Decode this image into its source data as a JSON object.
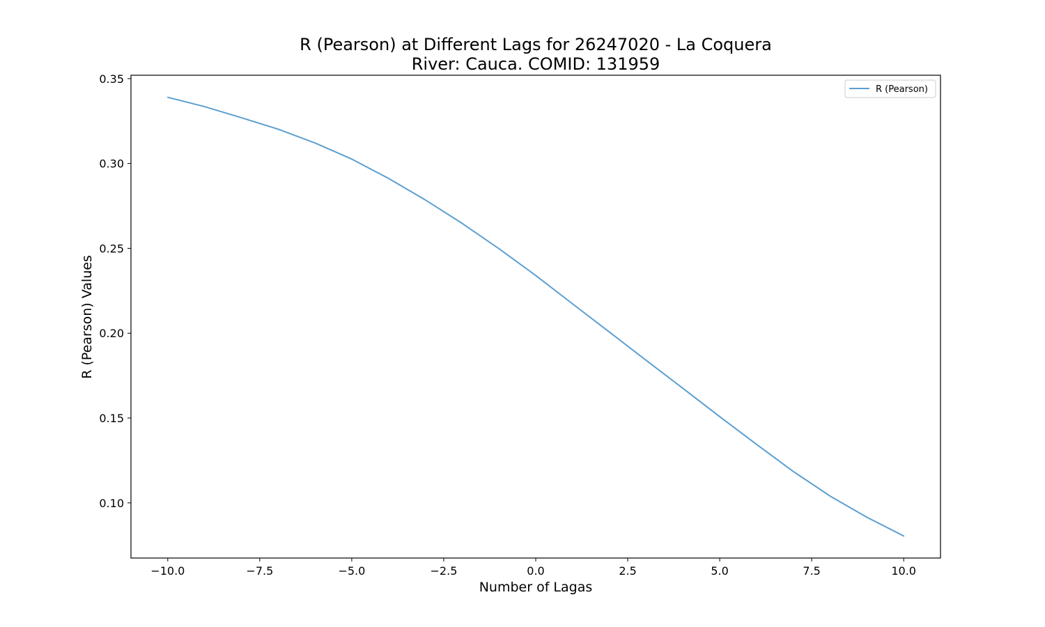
{
  "chart_data": {
    "type": "line",
    "title": "R (Pearson) at Different Lags for 26247020 - La Coquera",
    "subtitle": "River: Cauca. COMID: 131959",
    "xlabel": "Number of Lagas",
    "ylabel": "R (Pearson) Values",
    "xlim": [
      -11,
      11
    ],
    "ylim": [
      0.0675,
      0.352
    ],
    "x_ticks": [
      -10.0,
      -7.5,
      -5.0,
      -2.5,
      0.0,
      2.5,
      5.0,
      7.5,
      10.0
    ],
    "x_tick_labels": [
      "−10.0",
      "−7.5",
      "−5.0",
      "−2.5",
      "0.0",
      "2.5",
      "5.0",
      "7.5",
      "10.0"
    ],
    "y_ticks": [
      0.1,
      0.15,
      0.2,
      0.25,
      0.3,
      0.35
    ],
    "y_tick_labels": [
      "0.10",
      "0.15",
      "0.20",
      "0.25",
      "0.30",
      "0.35"
    ],
    "grid": false,
    "legend_position": "top-right",
    "series": [
      {
        "name": "R (Pearson)",
        "color": "#5b9fd0",
        "x": [
          -10,
          -9,
          -8,
          -7,
          -6,
          -5,
          -4,
          -3,
          -2,
          -1,
          0,
          1,
          2,
          3,
          4,
          5,
          6,
          7,
          8,
          9,
          10
        ],
        "y": [
          0.339,
          0.3335,
          0.327,
          0.3202,
          0.3121,
          0.3026,
          0.2912,
          0.2785,
          0.2647,
          0.2498,
          0.234,
          0.2173,
          0.2007,
          0.184,
          0.1675,
          0.1508,
          0.1345,
          0.1185,
          0.104,
          0.0915,
          0.0805
        ]
      }
    ]
  }
}
